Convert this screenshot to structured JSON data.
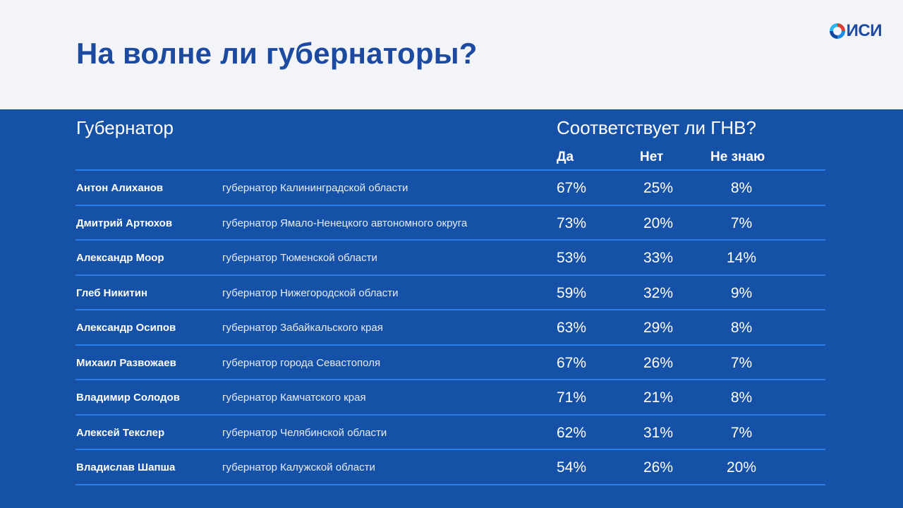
{
  "header": {
    "title": "На волне ли губернаторы?",
    "logo_text": "ИСИ",
    "logo_icon": "isi-globe-icon"
  },
  "table": {
    "col_governor": "Губернатор",
    "col_question": "Соответствует ли ГНВ?",
    "col_yes": "Да",
    "col_no": "Нет",
    "col_dunno": "Не знаю",
    "rows": [
      {
        "name": "Антон Алиханов",
        "role": "губернатор Калининградской области",
        "yes": "67%",
        "no": "25%",
        "dunno": "8%"
      },
      {
        "name": "Дмитрий Артюхов",
        "role": "губернатор Ямало-Ненецкого автономного округа",
        "yes": "73%",
        "no": "20%",
        "dunno": "7%"
      },
      {
        "name": "Александр Моор",
        "role": "губернатор Тюменской области",
        "yes": "53%",
        "no": "33%",
        "dunno": "14%"
      },
      {
        "name": "Глеб Никитин",
        "role": "губернатор Нижегородской области",
        "yes": "59%",
        "no": "32%",
        "dunno": "9%"
      },
      {
        "name": "Александр Осипов",
        "role": "губернатор Забайкальского края",
        "yes": "63%",
        "no": "29%",
        "dunno": "8%"
      },
      {
        "name": "Михаил Развожаев",
        "role": "губернатор города Севастополя",
        "yes": "67%",
        "no": "26%",
        "dunno": "7%"
      },
      {
        "name": "Владимир Солодов",
        "role": "губернатор Камчатского края",
        "yes": "71%",
        "no": "21%",
        "dunno": "8%"
      },
      {
        "name": "Алексей Текслер",
        "role": "губернатор Челябинской области",
        "yes": "62%",
        "no": "31%",
        "dunno": "7%"
      },
      {
        "name": "Владислав Шапша",
        "role": "губернатор Калужской области",
        "yes": "54%",
        "no": "26%",
        "dunno": "20%"
      }
    ]
  },
  "colors": {
    "background_blue": "#1651a8",
    "header_band": "#f3f4f7",
    "title_blue": "#1b4aa0",
    "rule_blue": "#2b7be8"
  }
}
